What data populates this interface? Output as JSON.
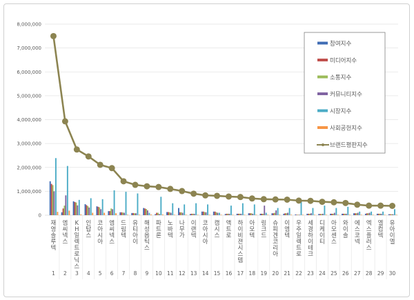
{
  "chart_data": {
    "type": "bar+line",
    "ylim": [
      0,
      8000000
    ],
    "yticks": [
      "0",
      "1,000,000",
      "2,000,000",
      "3,000,000",
      "4,000,000",
      "5,000,000",
      "6,000,000",
      "7,000,000",
      "8,000,000"
    ],
    "grid": true,
    "legend_position": "top-right",
    "categories": [
      "재영솔루텍",
      "엠씨넥스",
      "KH일렉트로닉스",
      "인탑스",
      "코아시아",
      "엠씨넥스",
      "드림텍",
      "유티아이",
      "해성옵틱스",
      "파트론",
      "노바텍",
      "나무가",
      "이랜텍",
      "코아시아",
      "캠시스",
      "액트로",
      "하이비젼시스템",
      "아모텍",
      "링크드",
      "슈피겐코리아",
      "이엠텍",
      "우주일렉트로",
      "세경하이테크",
      "디케이티",
      "아모센스",
      "와이솔",
      "에스코넥",
      "엑스플러스",
      "엘컴텍",
      "유아이엘"
    ],
    "ranks": [
      "1",
      "2",
      "3",
      "4",
      "5",
      "6",
      "7",
      "8",
      "9",
      "10",
      "11",
      "12",
      "13",
      "14",
      "15",
      "16",
      "17",
      "18",
      "19",
      "20",
      "21",
      "22",
      "23",
      "24",
      "25",
      "26",
      "27",
      "28",
      "29",
      "30"
    ],
    "series": [
      {
        "name": "참여지수",
        "kind": "bar",
        "color": "#3f6cb4",
        "values": [
          1420000,
          120000,
          580000,
          460000,
          370000,
          170000,
          120000,
          90000,
          300000,
          40000,
          130000,
          300000,
          50000,
          150000,
          150000,
          50000,
          60000,
          80000,
          60000,
          80000,
          60000,
          30000,
          60000,
          50000,
          60000,
          60000,
          80000,
          60000,
          60000,
          40000
        ]
      },
      {
        "name": "미디어지수",
        "kind": "bar",
        "color": "#c0504d",
        "values": [
          1310000,
          280000,
          550000,
          420000,
          350000,
          170000,
          120000,
          90000,
          280000,
          100000,
          130000,
          120000,
          60000,
          150000,
          150000,
          60000,
          60000,
          80000,
          60000,
          80000,
          80000,
          20000,
          60000,
          50000,
          60000,
          60000,
          80000,
          80000,
          60000,
          40000
        ]
      },
      {
        "name": "소통지수",
        "kind": "bar",
        "color": "#9bbb59",
        "values": [
          1260000,
          400000,
          530000,
          380000,
          330000,
          280000,
          110000,
          80000,
          260000,
          100000,
          120000,
          120000,
          60000,
          130000,
          120000,
          60000,
          60000,
          80000,
          60000,
          100000,
          80000,
          20000,
          60000,
          50000,
          60000,
          60000,
          80000,
          80000,
          60000,
          40000
        ]
      },
      {
        "name": "커뮤니티지수",
        "kind": "bar",
        "color": "#8064a2",
        "values": [
          1000000,
          830000,
          410000,
          320000,
          250000,
          250000,
          100000,
          80000,
          200000,
          50000,
          100000,
          100000,
          60000,
          120000,
          100000,
          60000,
          60000,
          60000,
          400000,
          200000,
          100000,
          20000,
          80000,
          60000,
          100000,
          60000,
          100000,
          100000,
          60000,
          40000
        ]
      },
      {
        "name": "시장지수",
        "kind": "bar",
        "color": "#4bacc6",
        "values": [
          2390000,
          2060000,
          640000,
          710000,
          670000,
          1040000,
          980000,
          910000,
          100000,
          770000,
          500000,
          450000,
          500000,
          450000,
          100000,
          400000,
          500000,
          450000,
          100000,
          300000,
          300000,
          600000,
          300000,
          400000,
          300000,
          350000,
          150000,
          150000,
          150000,
          250000
        ]
      },
      {
        "name": "사회공헌지수",
        "kind": "bar",
        "color": "#f79646",
        "values": [
          140000,
          190000,
          30000,
          100000,
          100000,
          80000,
          20000,
          20000,
          30000,
          30000,
          20000,
          20000,
          20000,
          20000,
          20000,
          20000,
          20000,
          20000,
          20000,
          20000,
          20000,
          20000,
          20000,
          20000,
          20000,
          20000,
          20000,
          20000,
          20000,
          20000
        ]
      },
      {
        "name": "브랜드평판지수",
        "kind": "line",
        "color": "#8c8451",
        "values": [
          7500000,
          3930000,
          2750000,
          2460000,
          2110000,
          1970000,
          1420000,
          1270000,
          1210000,
          1180000,
          1100000,
          1010000,
          900000,
          830000,
          810000,
          780000,
          760000,
          700000,
          670000,
          660000,
          650000,
          610000,
          600000,
          560000,
          540000,
          510000,
          440000,
          400000,
          400000,
          390000
        ]
      }
    ]
  }
}
